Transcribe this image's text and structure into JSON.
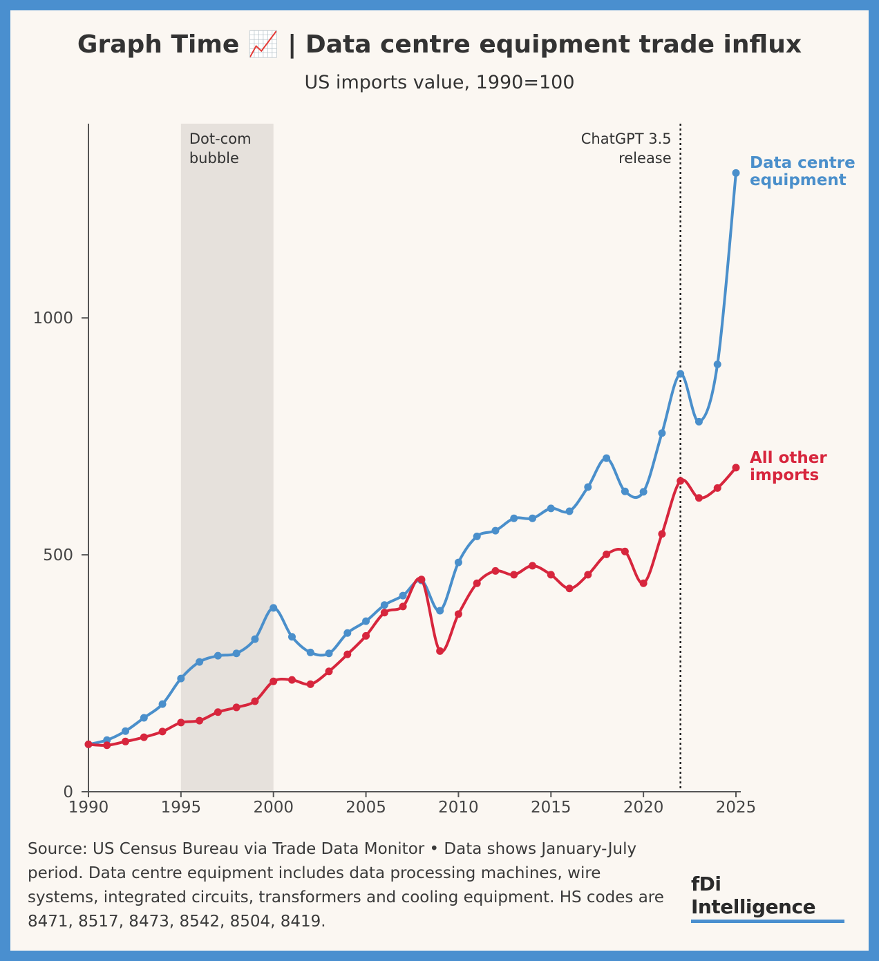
{
  "chart_data": {
    "type": "line",
    "title": "Graph Time 📈 | Data centre equipment trade influx",
    "subtitle": "US imports value, 1990=100",
    "x": [
      1990,
      1991,
      1992,
      1993,
      1994,
      1995,
      1996,
      1997,
      1998,
      1999,
      2000,
      2001,
      2002,
      2003,
      2004,
      2005,
      2006,
      2007,
      2008,
      2009,
      2010,
      2011,
      2012,
      2013,
      2014,
      2015,
      2016,
      2017,
      2018,
      2019,
      2020,
      2021,
      2022,
      2023,
      2024,
      2025
    ],
    "series": [
      {
        "name": "Data centre equipment",
        "color": "#4a8fcb",
        "values": [
          100,
          109,
          128,
          156,
          185,
          239,
          274,
          287,
          292,
          322,
          388,
          327,
          294,
          292,
          335,
          360,
          394,
          414,
          446,
          382,
          484,
          539,
          551,
          577,
          577,
          598,
          592,
          643,
          704,
          634,
          633,
          757,
          882,
          781,
          902,
          1306
        ]
      },
      {
        "name": "All other imports",
        "color": "#d7263d",
        "values": [
          100,
          98,
          106,
          115,
          127,
          146,
          150,
          168,
          178,
          191,
          233,
          236,
          227,
          254,
          290,
          329,
          378,
          391,
          448,
          297,
          375,
          440,
          466,
          458,
          477,
          458,
          429,
          458,
          501,
          507,
          440,
          544,
          656,
          620,
          641,
          684
        ]
      }
    ],
    "xlim": [
      1990,
      2025
    ],
    "xticks": [
      1990,
      1995,
      2000,
      2005,
      2010,
      2015,
      2020,
      2025
    ],
    "ylim": [
      0,
      1410
    ],
    "yticks": [
      0,
      500,
      1000
    ],
    "annotations": [
      {
        "type": "span",
        "x": [
          1995,
          2000
        ],
        "lines": [
          "Dot-com",
          "bubble"
        ]
      },
      {
        "type": "vline",
        "x": 2022,
        "lines": [
          "ChatGPT 3.5",
          "release"
        ]
      }
    ],
    "source": "Source: US Census Bureau via Trade Data Monitor • Data shows January-July period. Data centre equipment includes data processing machines, wire systems, integrated circuits, transformers and cooling equipment. HS codes are 8471, 8517, 8473, 8542, 8504, 8419.",
    "logo": "fDi Intelligence"
  }
}
